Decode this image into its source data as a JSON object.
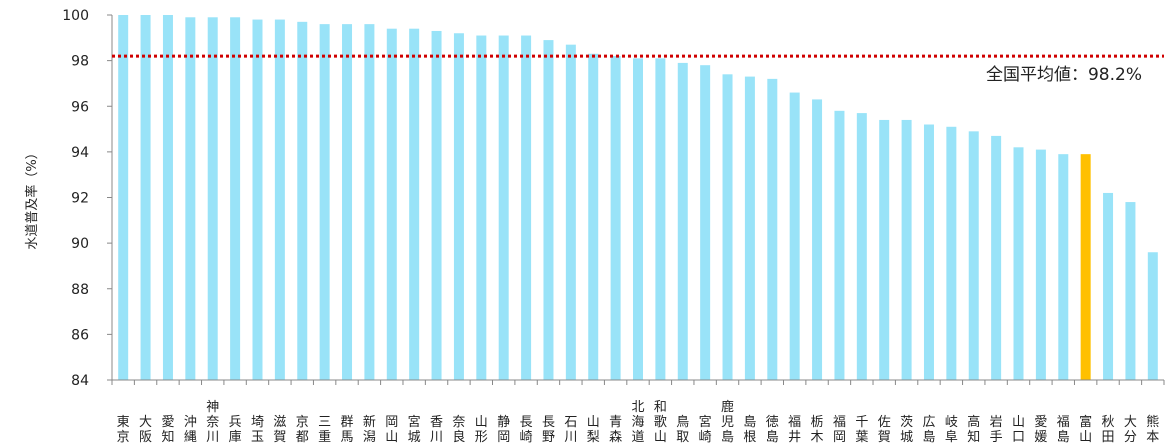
{
  "chart_data": {
    "type": "bar",
    "ylabel": "水道普及率（%）",
    "ylim": [
      84,
      100
    ],
    "yticks": [
      "84",
      "86",
      "88",
      "90",
      "92",
      "94",
      "96",
      "98",
      "100"
    ],
    "grid": false,
    "categories": [
      "東京",
      "大阪",
      "愛知",
      "沖縄",
      "神奈川",
      "兵庫",
      "埼玉",
      "滋賀",
      "京都",
      "三重",
      "群馬",
      "新潟",
      "岡山",
      "宮城",
      "香川",
      "奈良",
      "山形",
      "静岡",
      "長崎",
      "長野",
      "石川",
      "山梨",
      "青森",
      "北海道",
      "和歌山",
      "鳥取",
      "宮崎",
      "鹿児島",
      "島根",
      "徳島",
      "福井",
      "栃木",
      "福岡",
      "千葉",
      "佐賀",
      "茨城",
      "広島",
      "岐阜",
      "高知",
      "岩手",
      "山口",
      "愛媛",
      "福島",
      "富山",
      "秋田",
      "大分",
      "熊本"
    ],
    "values": [
      100.0,
      100.0,
      100.0,
      99.9,
      99.9,
      99.9,
      99.8,
      99.8,
      99.7,
      99.6,
      99.6,
      99.6,
      99.4,
      99.4,
      99.3,
      99.2,
      99.1,
      99.1,
      99.1,
      98.9,
      98.7,
      98.3,
      98.2,
      98.1,
      98.1,
      97.9,
      97.8,
      97.4,
      97.3,
      97.2,
      96.6,
      96.3,
      95.8,
      95.7,
      95.4,
      95.4,
      95.2,
      95.1,
      94.9,
      94.7,
      94.2,
      94.1,
      93.9,
      93.9,
      92.2,
      91.8,
      89.6
    ],
    "highlight": "富山",
    "average": {
      "value": 98.2,
      "label": "全国平均値：98.2%"
    },
    "colors": {
      "bar": "#99E3F8",
      "highlight": "#FFC000",
      "average_line": "#D00000",
      "axis": "#888888"
    }
  }
}
